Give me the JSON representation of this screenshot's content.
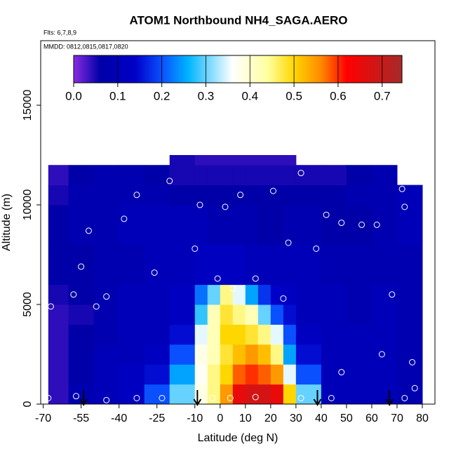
{
  "chart_data": {
    "type": "heatmap",
    "title": "ATOM1 Northbound NH4_SAGA.AERO",
    "flights_note": "Flts: 6,7,8,9",
    "dates_note": "MMDD: 0812,0815,0817,0820",
    "xlabel": "Latitude (deg N)",
    "ylabel": "Altitude (m)",
    "xlim": [
      -71,
      85
    ],
    "ylim": [
      0,
      18240
    ],
    "xticks": [
      -70,
      -55,
      -40,
      -25,
      -10,
      0,
      10,
      20,
      30,
      40,
      50,
      60,
      70,
      80
    ],
    "yticks": [
      0,
      5000,
      10000,
      15000
    ],
    "clim": [
      0,
      0.745
    ],
    "cticks": [
      {
        "value": 0,
        "label": "0.0"
      },
      0.1,
      0.2,
      0.3,
      0.4,
      0.5,
      0.6,
      0.7
    ],
    "colorscale": [
      {
        "value": 0,
        "color": "#8a2be2"
      },
      {
        "value": 0.06,
        "color": "#0000a8"
      },
      {
        "value": 0.14,
        "color": "#0000c8"
      },
      {
        "value": 0.2,
        "color": "#0a50ff"
      },
      {
        "value": 0.26,
        "color": "#00b4ff"
      },
      {
        "value": 0.36,
        "color": "#ffffff"
      },
      {
        "value": 0.44,
        "color": "#ffffa0"
      },
      {
        "value": 0.5,
        "color": "#ffd700"
      },
      {
        "value": 0.56,
        "color": "#ff8c00"
      },
      {
        "value": 0.62,
        "color": "#ff0000"
      },
      {
        "value": 0.745,
        "color": "#a52a2a"
      }
    ],
    "lat_edges": [
      -68,
      -60,
      -50,
      -40,
      -30,
      -20,
      -10,
      -5,
      0,
      5,
      10,
      15,
      20,
      25,
      30,
      40,
      50,
      60,
      70,
      80
    ],
    "alt_edges": [
      0,
      1000,
      2000,
      3000,
      4000,
      5000,
      6000,
      8000,
      10000,
      11000,
      12000,
      12500
    ],
    "values": [
      [
        0.04,
        0.08,
        0.1,
        0.12,
        0.2,
        0.3,
        0.38,
        0.45,
        0.55,
        0.65,
        0.68,
        0.68,
        0.65,
        0.5,
        0.3,
        0.1,
        0.1,
        0.1,
        0.08
      ],
      [
        0.04,
        0.06,
        0.1,
        0.12,
        0.15,
        0.25,
        0.37,
        0.45,
        0.5,
        0.58,
        0.6,
        0.58,
        0.55,
        0.35,
        0.2,
        0.1,
        0.1,
        0.1,
        0.08
      ],
      [
        0.04,
        0.06,
        0.1,
        0.1,
        0.12,
        0.2,
        0.38,
        0.42,
        0.48,
        0.52,
        0.55,
        0.52,
        0.45,
        0.25,
        0.15,
        0.1,
        0.1,
        0.1,
        0.08
      ],
      [
        0.04,
        0.06,
        0.08,
        0.1,
        0.1,
        0.15,
        0.35,
        0.42,
        0.5,
        0.5,
        0.48,
        0.45,
        0.35,
        0.2,
        0.12,
        0.1,
        0.1,
        0.1,
        0.08
      ],
      [
        0.04,
        0.05,
        0.08,
        0.1,
        0.1,
        0.12,
        0.28,
        0.42,
        0.48,
        0.45,
        0.42,
        0.3,
        0.2,
        0.15,
        0.1,
        0.1,
        0.08,
        0.1,
        0.08
      ],
      [
        0.05,
        0.06,
        0.08,
        0.1,
        0.1,
        0.12,
        0.22,
        0.3,
        0.45,
        0.35,
        0.25,
        0.18,
        0.14,
        0.12,
        0.1,
        0.1,
        0.08,
        0.1,
        0.08
      ],
      [
        0.06,
        0.06,
        0.08,
        0.08,
        0.1,
        0.1,
        0.12,
        0.12,
        0.12,
        0.12,
        0.1,
        0.1,
        0.1,
        0.1,
        0.1,
        0.08,
        0.08,
        0.08,
        0.08
      ],
      [
        0.06,
        0.08,
        0.08,
        0.1,
        0.1,
        0.1,
        0.1,
        0.08,
        0.08,
        0.08,
        0.08,
        0.06,
        0.06,
        0.08,
        0.08,
        0.06,
        0.06,
        0.08,
        0.1
      ],
      [
        0.05,
        0.08,
        0.08,
        0.08,
        0.08,
        0.06,
        0.06,
        0.06,
        0.06,
        0.06,
        0.06,
        0.06,
        0.06,
        0.06,
        0.06,
        0.06,
        0.08,
        0.08,
        0.1
      ],
      [
        0.04,
        0.06,
        0.08,
        0.08,
        0.06,
        0.05,
        0.05,
        0.05,
        0.05,
        0.05,
        0.05,
        0.05,
        0.05,
        0.05,
        0.05,
        0.05,
        0.06,
        0.08,
        null
      ],
      [
        null,
        null,
        null,
        null,
        null,
        0.05,
        0.04,
        0.04,
        0.04,
        0.04,
        0.04,
        0.04,
        0.04,
        0.04,
        null,
        null,
        null,
        null,
        null
      ]
    ],
    "samples": {
      "lat": [
        -68,
        -57,
        -45,
        -33,
        -23,
        -3,
        4,
        14,
        32,
        44,
        73,
        -67,
        -58,
        -55,
        -52,
        -49,
        -45,
        -38,
        -33,
        -26,
        -20,
        -10,
        -8,
        2,
        8,
        14,
        21,
        27,
        32,
        38,
        42,
        48,
        56,
        62,
        68,
        72,
        73,
        76,
        77,
        -1,
        5,
        25,
        48,
        64
      ],
      "alt": [
        300,
        400,
        200,
        300,
        300,
        300,
        300,
        350,
        300,
        300,
        300,
        4900,
        5500,
        6900,
        8700,
        4900,
        5400,
        9300,
        10500,
        6600,
        11200,
        7800,
        10000,
        9900,
        10500,
        6300,
        10700,
        8100,
        11600,
        7800,
        9500,
        9100,
        9000,
        9000,
        5500,
        10800,
        9900,
        2100,
        800,
        6300,
        5800,
        5300,
        1600,
        2500
      ]
    },
    "flight_arrows": [
      -54,
      -9,
      38.5,
      67
    ]
  }
}
